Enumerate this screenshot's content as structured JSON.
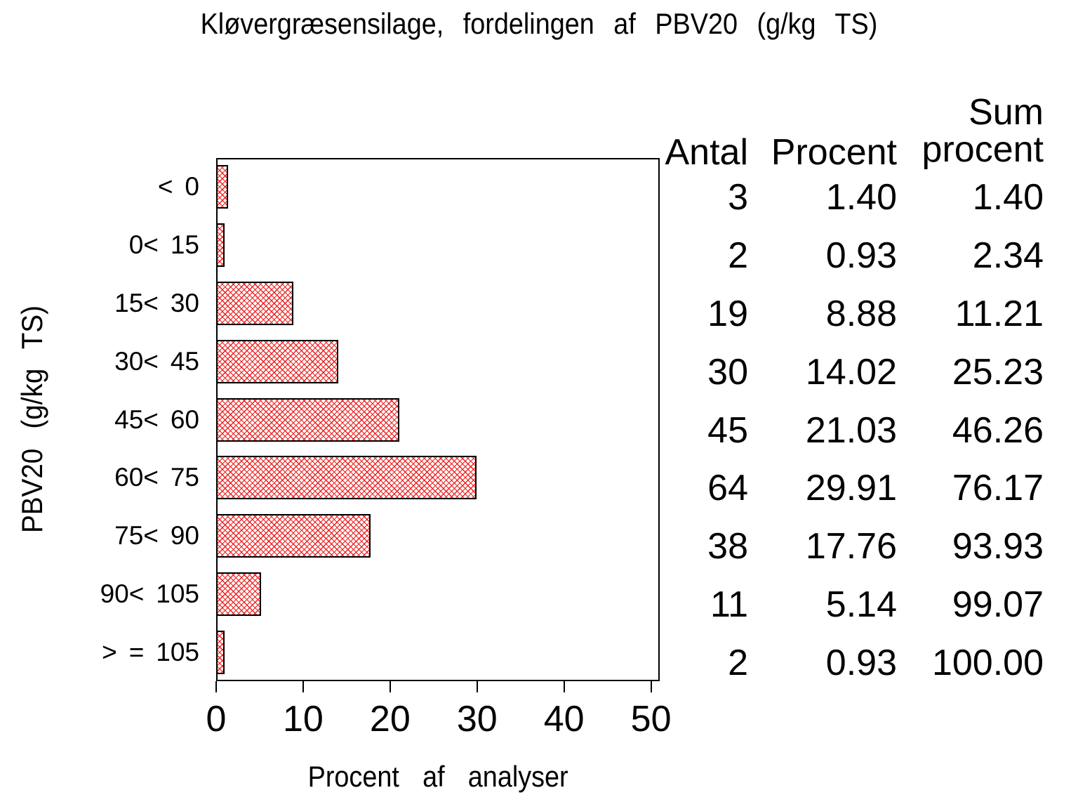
{
  "page": {
    "background": "#ffffff",
    "text_color": "#000000"
  },
  "title": "Kløvergræsensilage, fordelingen af PBV20 (g/kg TS)",
  "chart_data": {
    "type": "bar",
    "orientation": "horizontal",
    "title": "Kløvergræsensilage, fordelingen af PBV20 (g/kg TS)",
    "xlabel": "Procent af analyser",
    "ylabel": "PBV20 (g/kg TS)",
    "categories": [
      "< 0",
      "0< 15",
      "15< 30",
      "30< 45",
      "45< 60",
      "60< 75",
      "75< 90",
      "90< 105",
      "> = 105"
    ],
    "values": [
      1.4,
      0.93,
      8.88,
      14.02,
      21.03,
      29.91,
      17.76,
      5.14,
      0.93
    ],
    "counts": [
      3,
      2,
      19,
      30,
      45,
      64,
      38,
      11,
      2
    ],
    "cumulative_percent": [
      1.4,
      2.34,
      11.21,
      25.23,
      46.26,
      76.17,
      93.93,
      99.07,
      100.0
    ],
    "xlim": [
      0,
      50
    ],
    "xticks": [
      0,
      10,
      20,
      30,
      40,
      50
    ],
    "grid": false,
    "legend": "none",
    "bar_style": {
      "fill_pattern": "diagonal-crosshatch",
      "pattern_color": "#ee1c1c",
      "border_color": "#000000",
      "fill_background": "#ffffff"
    }
  },
  "table": {
    "headers": {
      "antal": "Antal",
      "procent": "Procent",
      "sum_line1": "Sum",
      "sum_line2": "procent"
    },
    "rows": [
      {
        "antal": "3",
        "procent": "1.40",
        "sum": "1.40"
      },
      {
        "antal": "2",
        "procent": "0.93",
        "sum": "2.34"
      },
      {
        "antal": "19",
        "procent": "8.88",
        "sum": "11.21"
      },
      {
        "antal": "30",
        "procent": "14.02",
        "sum": "25.23"
      },
      {
        "antal": "45",
        "procent": "21.03",
        "sum": "46.26"
      },
      {
        "antal": "64",
        "procent": "29.91",
        "sum": "76.17"
      },
      {
        "antal": "38",
        "procent": "17.76",
        "sum": "93.93"
      },
      {
        "antal": "11",
        "procent": "5.14",
        "sum": "99.07"
      },
      {
        "antal": "2",
        "procent": "0.93",
        "sum": "100.00"
      }
    ]
  }
}
